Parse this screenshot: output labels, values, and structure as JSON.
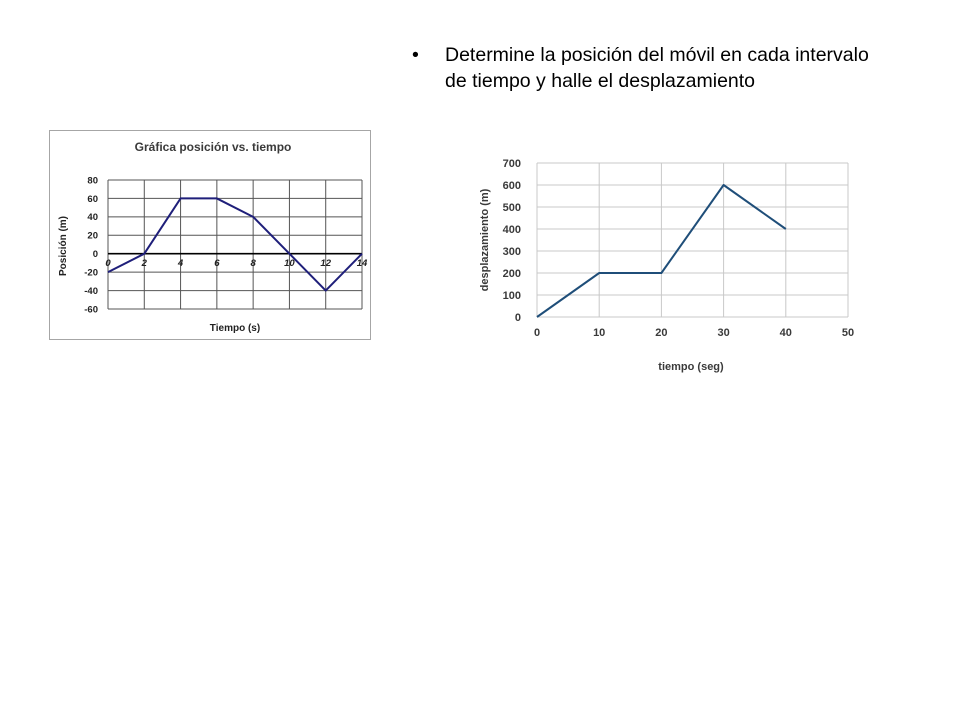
{
  "instruction": {
    "text": "Determine la posición del móvil en cada intervalo de tiempo y halle el desplazamiento"
  },
  "chart_data": [
    {
      "type": "line",
      "title": "Gráfica posición vs. tiempo",
      "xlabel": "Tiempo (s)",
      "ylabel": "Posición (m)",
      "xlim": [
        0,
        14
      ],
      "ylim": [
        -60,
        80
      ],
      "xticks": [
        0,
        2,
        4,
        6,
        8,
        10,
        12,
        14
      ],
      "xtick_labels": [
        "0",
        "2",
        "4",
        "6",
        "8",
        "10",
        "12",
        "14"
      ],
      "yticks": [
        80,
        60,
        40,
        20,
        0,
        -20,
        -40,
        -60
      ],
      "ytick_labels": [
        "80",
        "60",
        "40",
        "20",
        "0",
        "-20",
        "-40",
        "-60"
      ],
      "grid": true,
      "line_color": "#1f1f7a",
      "series": [
        {
          "x": [
            0,
            2,
            4,
            6,
            8,
            10,
            12,
            14
          ],
          "y": [
            -20,
            0,
            60,
            60,
            40,
            0,
            -40,
            0
          ]
        }
      ]
    },
    {
      "type": "line",
      "title": "",
      "xlabel": "tiempo (seg)",
      "ylabel": "desplazamiento (m)",
      "xlim": [
        0,
        50
      ],
      "ylim": [
        0,
        700
      ],
      "xticks": [
        0,
        10,
        20,
        30,
        40,
        50
      ],
      "xtick_labels": [
        "0",
        "10",
        "20",
        "30",
        "40",
        "50"
      ],
      "yticks": [
        0,
        100,
        200,
        300,
        400,
        500,
        600,
        700
      ],
      "ytick_labels": [
        "0",
        "100",
        "200",
        "300",
        "400",
        "500",
        "600",
        "700"
      ],
      "grid": true,
      "line_color": "#1f4e79",
      "series": [
        {
          "x": [
            0,
            10,
            20,
            30,
            40
          ],
          "y": [
            0,
            200,
            200,
            600,
            400
          ]
        }
      ]
    }
  ]
}
